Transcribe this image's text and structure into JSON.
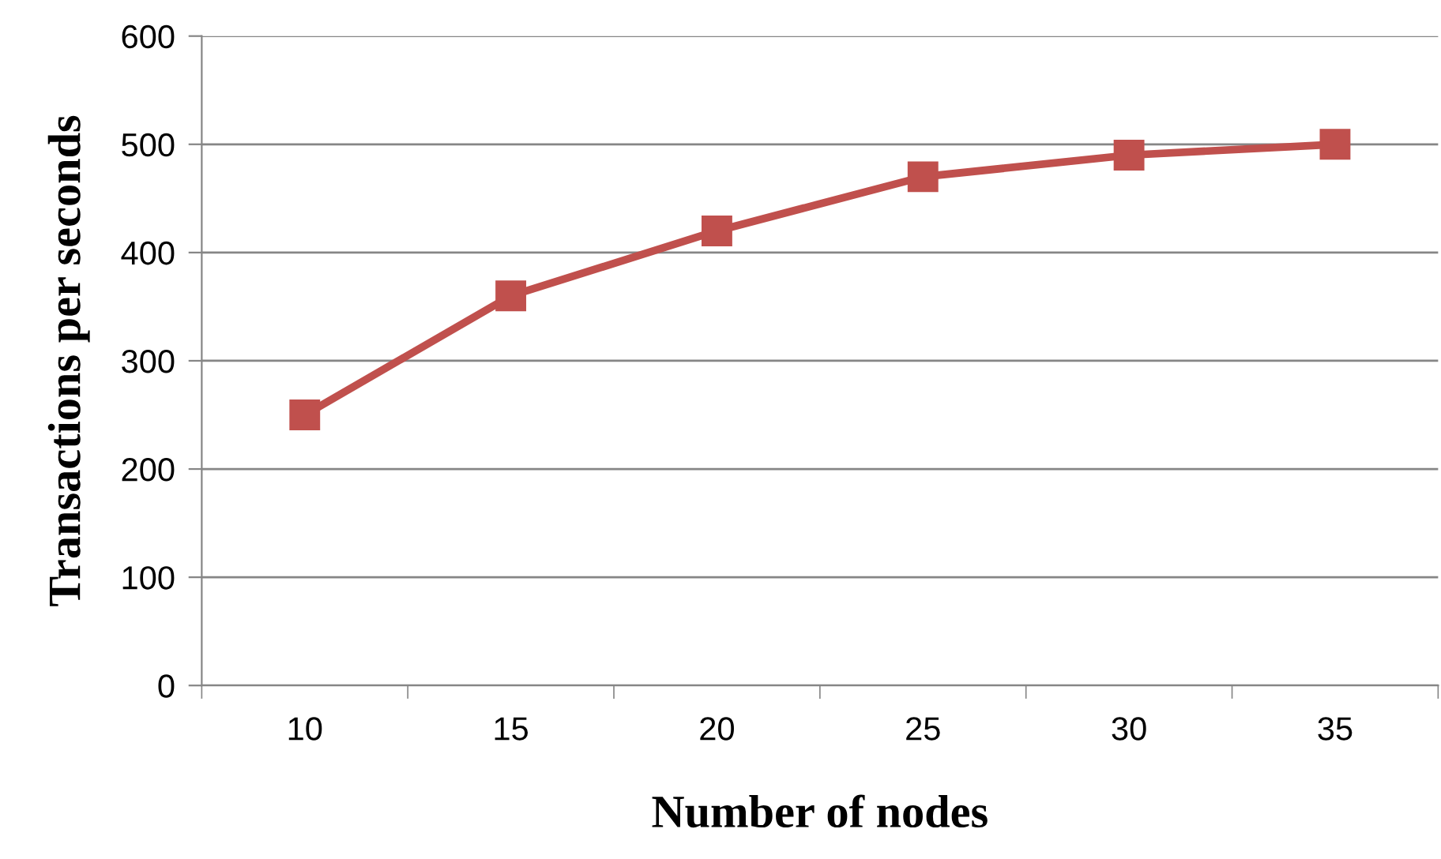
{
  "chart_data": {
    "type": "line",
    "xlabel": "Number of nodes",
    "ylabel": "Transactions per seconds",
    "categories": [
      "10",
      "15",
      "20",
      "25",
      "30",
      "35"
    ],
    "series": [
      {
        "color": "#c0504d",
        "values": [
          250,
          360,
          420,
          470,
          490,
          500
        ]
      }
    ],
    "ylim": [
      0,
      600
    ],
    "yticks": [
      0,
      100,
      200,
      300,
      400,
      500,
      600
    ],
    "grid": "y",
    "marker": "square",
    "line_style": "solid",
    "legend": false
  }
}
